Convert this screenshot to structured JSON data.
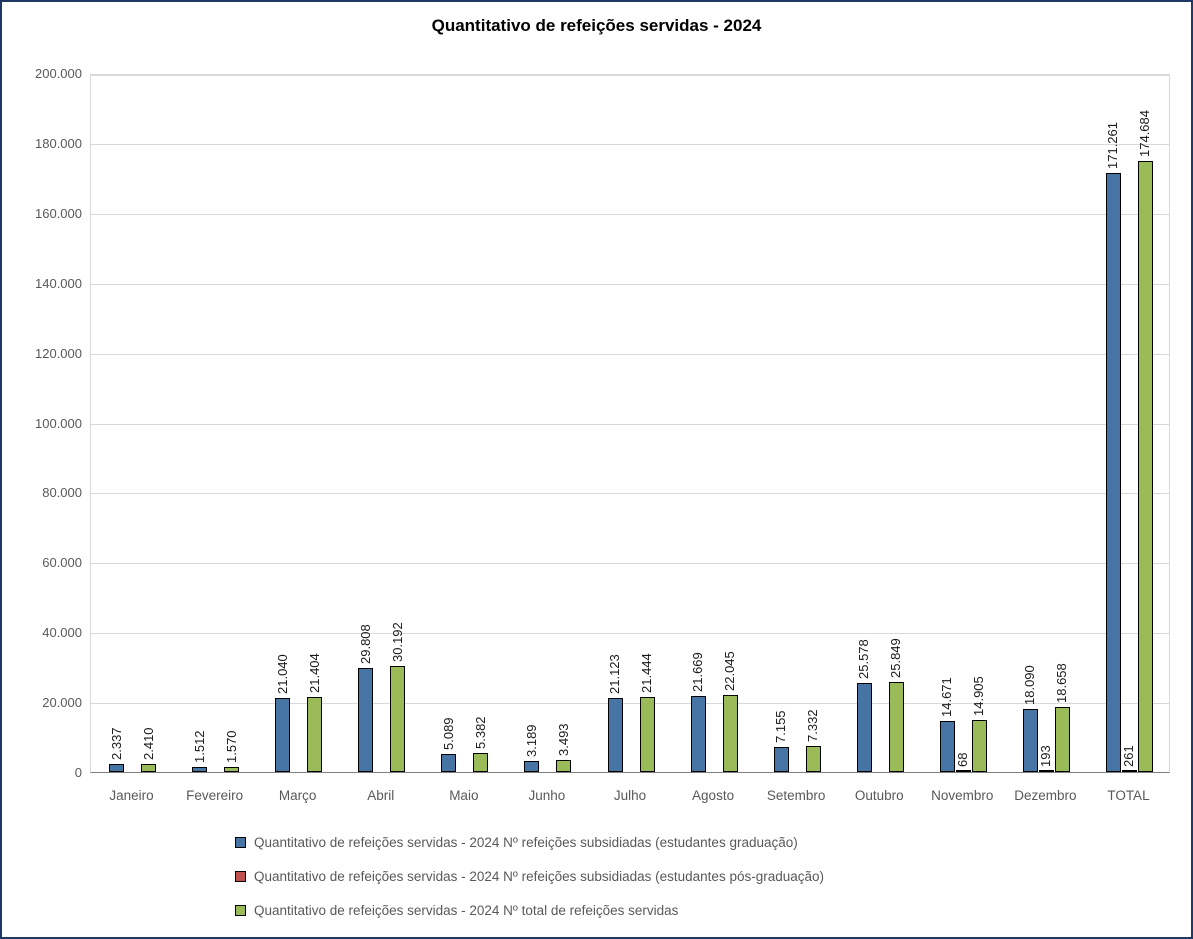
{
  "chart_data": {
    "type": "bar",
    "title": "Quantitativo de refeições servidas - 2024",
    "categories": [
      "Janeiro",
      "Fevereiro",
      "Março",
      "Abril",
      "Maio",
      "Junho",
      "Julho",
      "Agosto",
      "Setembro",
      "Outubro",
      "Novembro",
      "Dezembro",
      "TOTAL"
    ],
    "y_ticks": [
      "0",
      "20.000",
      "40.000",
      "60.000",
      "80.000",
      "100.000",
      "120.000",
      "140.000",
      "160.000",
      "180.000",
      "200.000"
    ],
    "ylim": [
      0,
      200000
    ],
    "grid": true,
    "legend_position": "bottom",
    "series": [
      {
        "key": "graduacao",
        "name": "Quantitativo de refeições servidas - 2024 Nº refeições subsidiadas (estudantes graduação)",
        "color": "#4674A4",
        "values": [
          2337,
          1512,
          21040,
          29808,
          5089,
          3189,
          21123,
          21669,
          7155,
          25578,
          14671,
          18090,
          171261
        ],
        "labels": [
          "2.337",
          "1.512",
          "21.040",
          "29.808",
          "5.089",
          "3.189",
          "21.123",
          "21.669",
          "7.155",
          "25.578",
          "14.671",
          "18.090",
          "171.261"
        ]
      },
      {
        "key": "pos-graduacao",
        "name": "Quantitativo de refeições servidas - 2024 Nº refeições subsidiadas (estudantes pós-graduação)",
        "color": "#C0504D",
        "values": [
          0,
          0,
          0,
          0,
          0,
          0,
          0,
          0,
          0,
          0,
          68,
          193,
          261
        ],
        "labels": [
          "",
          "",
          "",
          "",
          "",
          "",
          "",
          "",
          "",
          "",
          "68",
          "193",
          "261"
        ]
      },
      {
        "key": "total",
        "name": "Quantitativo de refeições servidas - 2024 Nº total de refeições servidas",
        "color": "#9BBB59",
        "values": [
          2410,
          1570,
          21404,
          30192,
          5382,
          3493,
          21444,
          22045,
          7332,
          25849,
          14905,
          18658,
          174684
        ],
        "labels": [
          "2.410",
          "1.570",
          "21.404",
          "30.192",
          "5.382",
          "3.493",
          "21.444",
          "22.045",
          "7.332",
          "25.849",
          "14.905",
          "18.658",
          "174.684"
        ]
      }
    ],
    "colors": {
      "frame_border": "#1F3864",
      "gridline": "#D9D9D9",
      "axis_line": "#7F7F7F",
      "axis_text": "#595959",
      "bar_border": "#000000"
    }
  }
}
